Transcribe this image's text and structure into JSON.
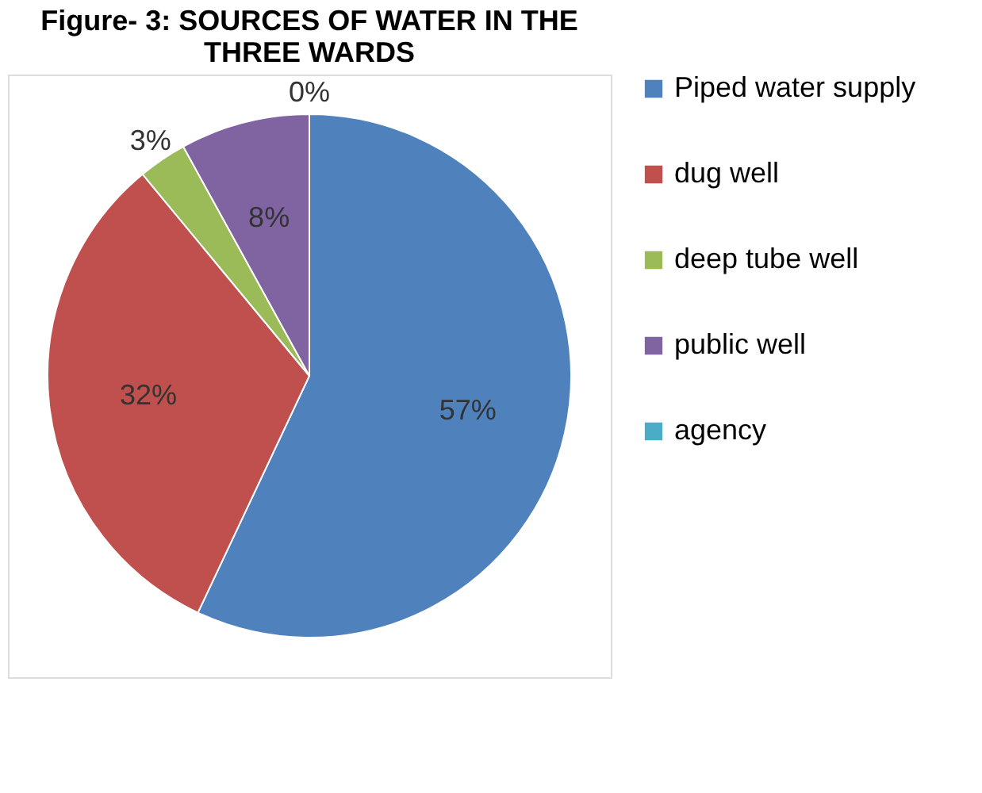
{
  "chart_data": {
    "type": "pie",
    "title": "Figure- 3: SOURCES OF WATER IN THE THREE WARDS",
    "categories": [
      "Piped water supply",
      "dug well",
      "deep tube well",
      "public well",
      "agency"
    ],
    "values": [
      57,
      32,
      3,
      8,
      0
    ],
    "colors": [
      "#4f81bd",
      "#c0504d",
      "#9bbb59",
      "#8064a2",
      "#4bacc6"
    ],
    "value_labels": [
      "57%",
      "32%",
      "3%",
      "8%",
      "0%"
    ],
    "legend": "right"
  }
}
